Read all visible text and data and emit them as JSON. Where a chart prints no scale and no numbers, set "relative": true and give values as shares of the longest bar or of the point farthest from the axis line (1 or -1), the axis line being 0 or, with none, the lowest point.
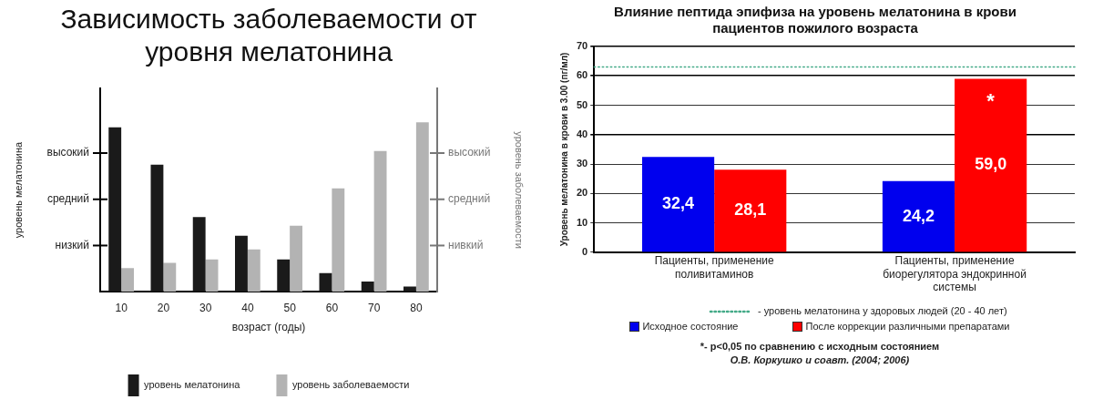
{
  "chart_data": [
    {
      "type": "bar",
      "title": "Зависимость заболеваемости от уровня мелатонина",
      "xlabel": "возраст (годы)",
      "ylabel": "уровень мелатонина",
      "y2label": "уровень заболеваемости",
      "relative": true,
      "categories": [
        "10",
        "20",
        "30",
        "40",
        "50",
        "60",
        "70",
        "80"
      ],
      "series": [
        {
          "name": "уровень мелатонина",
          "color": "#1a1a1a",
          "values": [
            0.97,
            0.75,
            0.44,
            0.33,
            0.19,
            0.11,
            0.06,
            0.03
          ]
        },
        {
          "name": "уровень заболеваемости",
          "color": "#b3b3b3",
          "values": [
            0.14,
            0.17,
            0.19,
            0.25,
            0.39,
            0.61,
            0.83,
            1
          ]
        }
      ],
      "annotations": [
        "низкий",
        "средний",
        "высокий",
        "нивкий",
        "средний",
        "высокий"
      ],
      "grid": false,
      "legend": "bottom"
    },
    {
      "type": "bar",
      "title": "Влияние пептида эпифиза на уровень мелатонина в крови пациентов пожилого возраста",
      "ylabel": "Уровень мелатонина в крови в 3.00 (пг/мл)",
      "categories": [
        "Пациенты, применение поливитаминов",
        "Пациенты, применение биорегулятора эндокринной системы"
      ],
      "series": [
        {
          "name": "Исходное состояние",
          "color": "#0000ee",
          "values": [
            32.4,
            24.2
          ],
          "value_labels": [
            "32,4",
            "24,2"
          ]
        },
        {
          "name": "После коррекции различными препаратами",
          "color": "#ff0000",
          "values": [
            28.1,
            59.0
          ],
          "value_labels": [
            "28,1",
            "59,0"
          ]
        }
      ],
      "ylim": [
        0,
        70
      ],
      "yticks": [
        0,
        10,
        20,
        30,
        40,
        50,
        60,
        70
      ],
      "grid": "y",
      "legend": "bottom",
      "ref_lines": [
        {
          "axis": "y",
          "value": 63,
          "label": "- уровень мелатонина у здоровых людей (20 - 40 лет)",
          "color": "#44aa88",
          "line_style": "dotted"
        }
      ],
      "annotations": [
        {
          "text": "*",
          "x": "Пациенты, применение биорегулятора эндокринной системы",
          "y": 51
        },
        "*- p<0,05 по сравнению с исходным состоянием",
        "О.В. Коркушко и соавт. (2004; 2006)"
      ]
    }
  ]
}
